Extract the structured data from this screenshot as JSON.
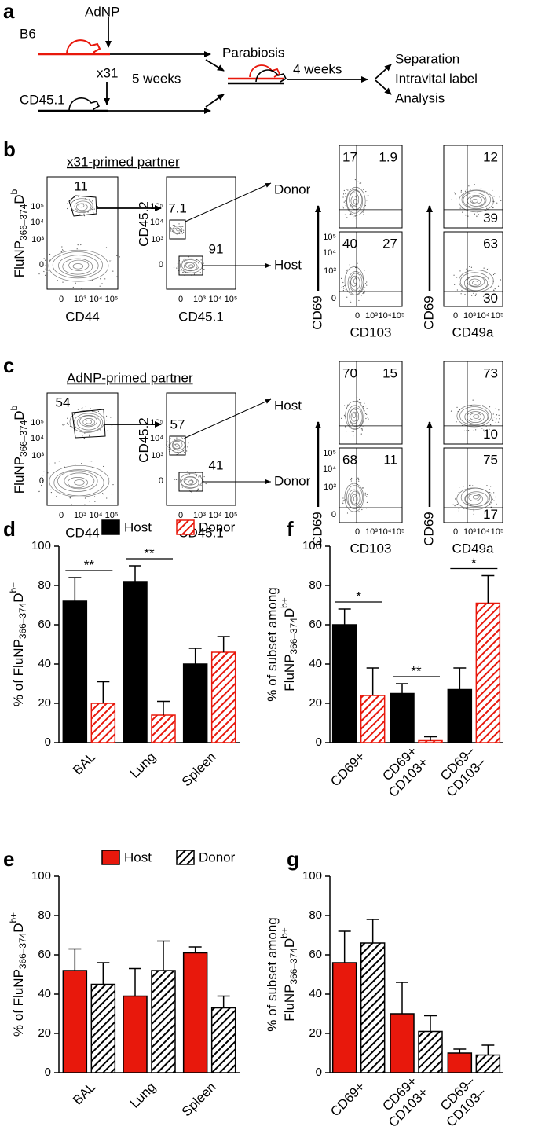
{
  "schematic": {
    "panel": "a",
    "b6": "B6",
    "adnp": "AdNP",
    "cd451": "CD45.1",
    "x31": "x31",
    "weeks5": "5 weeks",
    "parabiosis": "Parabiosis",
    "weeks4": "4 weeks",
    "outcomes": [
      "Separation",
      "Intravital label",
      "Analysis"
    ]
  },
  "flow_ticks": [
    "0",
    "10³",
    "10⁴",
    "10⁵"
  ],
  "flow": [
    {
      "panel": "b",
      "title": "x31-primed partner",
      "title_color": "#000000",
      "tetramer_label": [
        "FluNP",
        "366–374",
        "D",
        "b"
      ],
      "cd44": "CD44",
      "gate_tet": 11,
      "cd452": "CD45.2",
      "cd451": "CD45.1",
      "gate_upper": 7.1,
      "gate_lower": 91,
      "upper_dest": "Donor",
      "upper_dest_color": "#e8180c",
      "lower_dest": "Host",
      "cd69": "CD69",
      "cd103": "CD103",
      "cd49a": "CD49a",
      "cd103_top": [
        17,
        1.9
      ],
      "cd49a_top": [
        12,
        39
      ],
      "cd103_bottom": [
        40,
        27
      ],
      "cd49a_bottom": [
        63,
        30
      ]
    },
    {
      "panel": "c",
      "title": "AdNP-primed partner",
      "title_color": "#e8180c",
      "tetramer_label": [
        "FluNP",
        "366–374",
        "D",
        "b"
      ],
      "cd44": "CD44",
      "gate_tet": 54,
      "cd452": "CD45.2",
      "cd451": "CD45.1",
      "gate_upper": 57,
      "gate_lower": 41,
      "upper_dest": "Host",
      "upper_dest_color": "#e8180c",
      "lower_dest": "Donor",
      "cd69": "CD69",
      "cd103": "CD103",
      "cd49a": "CD49a",
      "cd103_top": [
        70,
        15
      ],
      "cd49a_top": [
        73,
        10
      ],
      "cd103_bottom": [
        68,
        11
      ],
      "cd49a_bottom": [
        75,
        17
      ]
    }
  ],
  "chart_data": [
    {
      "type": "bar",
      "panel": "d",
      "ylabel": [
        [
          "% of FluNP",
          "366–374",
          "D",
          "b+"
        ]
      ],
      "categories": [
        "BAL",
        "Lung",
        "Spleen"
      ],
      "series": [
        {
          "name": "Host",
          "color": "#000000",
          "hatched": false,
          "values": [
            72,
            82,
            40
          ],
          "errors": [
            12,
            8,
            8
          ]
        },
        {
          "name": "Donor",
          "color": "#e8180c",
          "hatched": true,
          "values": [
            20,
            14,
            46
          ],
          "errors": [
            11,
            7,
            8
          ]
        }
      ],
      "significance": [
        "**",
        "**",
        null
      ],
      "ylim": [
        0,
        100
      ],
      "yticks": [
        0,
        20,
        40,
        60,
        80,
        100
      ],
      "legend": "top"
    },
    {
      "type": "bar",
      "panel": "e",
      "ylabel": [
        [
          "% of FluNP",
          "366–374",
          "D",
          "b+"
        ]
      ],
      "categories": [
        "BAL",
        "Lung",
        "Spleen"
      ],
      "series": [
        {
          "name": "Host",
          "color": "#e8180c",
          "hatched": false,
          "values": [
            52,
            39,
            61
          ],
          "errors": [
            11,
            14,
            3
          ]
        },
        {
          "name": "Donor",
          "color": "#000000",
          "hatched": true,
          "values": [
            45,
            52,
            33
          ],
          "errors": [
            11,
            15,
            6
          ]
        }
      ],
      "ylim": [
        0,
        100
      ],
      "yticks": [
        0,
        20,
        40,
        60,
        80,
        100
      ],
      "legend": "top"
    },
    {
      "type": "bar",
      "panel": "f",
      "ylabel": [
        [
          "% of subset among"
        ],
        [
          "FluNP",
          "366–374",
          "D",
          "b+"
        ]
      ],
      "categories": [
        [
          "CD69+"
        ],
        [
          "CD69+",
          "CD103+"
        ],
        [
          "CD69–",
          "CD103–"
        ]
      ],
      "series": [
        {
          "color": "#000000",
          "hatched": false,
          "values": [
            60,
            25,
            27
          ],
          "errors": [
            8,
            5,
            11
          ]
        },
        {
          "color": "#e8180c",
          "hatched": true,
          "values": [
            24,
            1,
            71
          ],
          "errors": [
            14,
            2,
            14
          ]
        }
      ],
      "significance": [
        "*",
        "**",
        "*"
      ],
      "ylim": [
        0,
        100
      ],
      "yticks": [
        0,
        20,
        40,
        60,
        80,
        100
      ]
    },
    {
      "type": "bar",
      "panel": "g",
      "ylabel": [
        [
          "% of subset among"
        ],
        [
          "FluNP",
          "366–374",
          "D",
          "b+"
        ]
      ],
      "categories": [
        [
          "CD69+"
        ],
        [
          "CD69+",
          "CD103+"
        ],
        [
          "CD69–",
          "CD103–"
        ]
      ],
      "series": [
        {
          "color": "#e8180c",
          "hatched": false,
          "values": [
            56,
            30,
            10
          ],
          "errors": [
            16,
            16,
            2
          ]
        },
        {
          "color": "#000000",
          "hatched": true,
          "values": [
            66,
            21,
            9
          ],
          "errors": [
            12,
            8,
            5
          ]
        }
      ],
      "ylim": [
        0,
        100
      ],
      "yticks": [
        0,
        20,
        40,
        60,
        80,
        100
      ]
    }
  ]
}
